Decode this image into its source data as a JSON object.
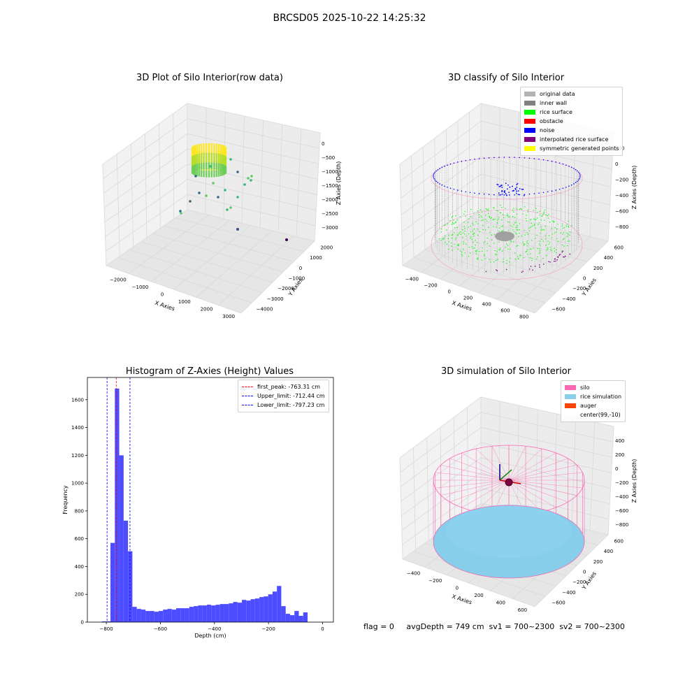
{
  "suptitle": "BRCSD05 2025-10-22 14:25:32",
  "status_text": "flag = 0     avgDepth = 749 cm  sv1 = 700~2300  sv2 = 700~2300",
  "colors": {
    "histogram_bar": "#4d4dff",
    "first_peak_line": "#ff0000",
    "limit_line": "#0000ff",
    "pane": "#f2f2f2",
    "grid": "#d9d9d9"
  },
  "chart_data": [
    {
      "type": "scatter",
      "title": "3D Plot of Silo Interior(row data)",
      "xlabel": "X Axies",
      "ylabel": "Y Axies",
      "zlabel": "Z Axies (Depth)",
      "x_ticks": [
        "−2000",
        "−1000",
        "0",
        "1000",
        "2000",
        "3000"
      ],
      "y_ticks": [
        "−4000",
        "−3000",
        "−2000",
        "−1000",
        "0",
        "1000",
        "2000"
      ],
      "z_ticks": [
        "0",
        "−500",
        "−1000",
        "−1500",
        "−2000",
        "−2500",
        "−3000"
      ],
      "colormap": [
        "#440154",
        "#31688e",
        "#35b779",
        "#fde725"
      ]
    },
    {
      "type": "scatter",
      "title": "3D classify of Silo Interior",
      "xlabel": "X Axies",
      "ylabel": "Y Axies",
      "zlabel": "Z Axies (Depth)",
      "x_ticks": [
        "−400",
        "−200",
        "0",
        "200",
        "400",
        "600",
        "800"
      ],
      "y_ticks": [
        "−600",
        "−400",
        "−200",
        "0",
        "200",
        "400",
        "600"
      ],
      "z_ticks": [
        "200",
        "0",
        "−200",
        "−400",
        "−600",
        "−800"
      ],
      "legend": [
        {
          "label": "original data",
          "color": "#b3b3b3"
        },
        {
          "label": "inner wall",
          "color": "#808080"
        },
        {
          "label": "rice surface",
          "color": "#00ff00"
        },
        {
          "label": "obstacle",
          "color": "#ff0000"
        },
        {
          "label": "noise",
          "color": "#0000ff"
        },
        {
          "label": "interpolated rice surface",
          "color": "#800080"
        },
        {
          "label": "symmetric generated points",
          "color": "#ffff00"
        }
      ]
    },
    {
      "type": "bar",
      "title": "Histogram of Z-Axies (Height) Values",
      "xlabel": "Depth (cm)",
      "ylabel": "Frequency",
      "xlim": [
        -870,
        40
      ],
      "ylim": [
        0,
        1760
      ],
      "x_ticks": [
        -800,
        -600,
        -400,
        -200,
        0
      ],
      "x_tick_labels": [
        "−800",
        "−600",
        "−400",
        "−200",
        "0"
      ],
      "y_ticks": [
        0,
        200,
        400,
        600,
        800,
        1000,
        1200,
        1400,
        1600
      ],
      "bin_width": 16.2,
      "bin_start": -817.0,
      "values": [
        5,
        5,
        570,
        1680,
        1200,
        730,
        510,
        110,
        95,
        90,
        80,
        80,
        75,
        80,
        90,
        95,
        90,
        100,
        100,
        100,
        110,
        115,
        120,
        120,
        125,
        120,
        125,
        130,
        130,
        135,
        145,
        140,
        160,
        155,
        165,
        170,
        180,
        185,
        200,
        220,
        260,
        115,
        60,
        50,
        80,
        45,
        70
      ],
      "vlines": [
        {
          "label": "first_peak: -763.31 cm",
          "x": -763.31,
          "color": "#ff0000"
        },
        {
          "label": "Upper_limit: -712.44 cm",
          "x": -712.44,
          "color": "#0000ff"
        },
        {
          "label": "Lower_limit: -797.23 cm",
          "x": -797.23,
          "color": "#0000ff"
        }
      ]
    },
    {
      "type": "scatter",
      "title": "3D simulation of Silo Interior",
      "xlabel": "X Axies",
      "ylabel": "Y Axies",
      "zlabel": "Z Axies (Depth)",
      "x_ticks": [
        "−400",
        "−200",
        "0",
        "200",
        "400",
        "600"
      ],
      "y_ticks": [
        "−600",
        "−400",
        "−200",
        "0",
        "200",
        "400",
        "600"
      ],
      "z_ticks": [
        "400",
        "200",
        "0",
        "−200",
        "−400",
        "−600",
        "−800"
      ],
      "legend": [
        {
          "label": "silo",
          "color": "#ff69b4"
        },
        {
          "label": "rice simulation",
          "color": "#87ceeb"
        },
        {
          "label": "auger",
          "color": "#ff4500"
        },
        {
          "label": "center(99,-10)",
          "color": ""
        }
      ]
    }
  ]
}
